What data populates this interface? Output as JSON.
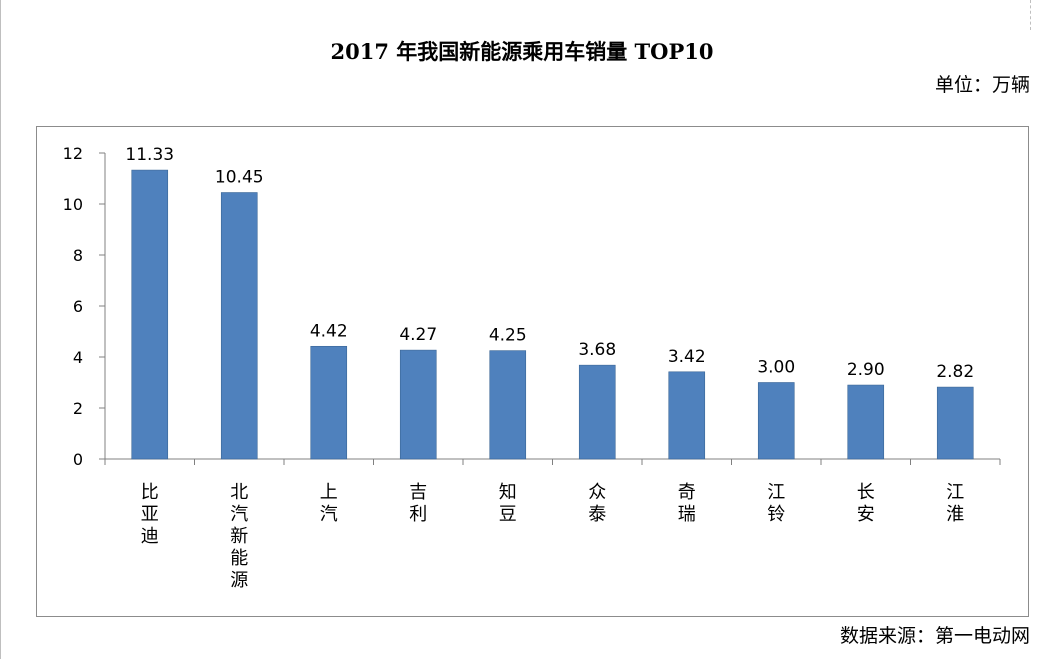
{
  "title": "2017 年我国新能源乘用车销量 TOP10",
  "unit_label": "单位：万辆",
  "source_label": "数据来源：第一电动网",
  "colors": {
    "bar": "#4f81bd",
    "bar_edge": "#3a6595",
    "axis": "#808080"
  },
  "chart_data": {
    "type": "bar",
    "title": "2017 年我国新能源乘用车销量 TOP10",
    "xlabel": "",
    "ylabel": "",
    "categories": [
      "比亚迪",
      "北汽新能源",
      "上汽",
      "吉利",
      "知豆",
      "众泰",
      "奇瑞",
      "江铃",
      "长安",
      "江淮"
    ],
    "values": [
      11.33,
      10.45,
      4.42,
      4.27,
      4.25,
      3.68,
      3.42,
      3.0,
      2.9,
      2.82
    ],
    "value_labels": [
      "11.33",
      "10.45",
      "4.42",
      "4.27",
      "4.25",
      "3.68",
      "3.42",
      "3.00",
      "2.90",
      "2.82"
    ],
    "ylim": [
      0,
      12
    ],
    "yticks": [
      0,
      2,
      4,
      6,
      8,
      10,
      12
    ],
    "grid": false,
    "legend": "none"
  }
}
